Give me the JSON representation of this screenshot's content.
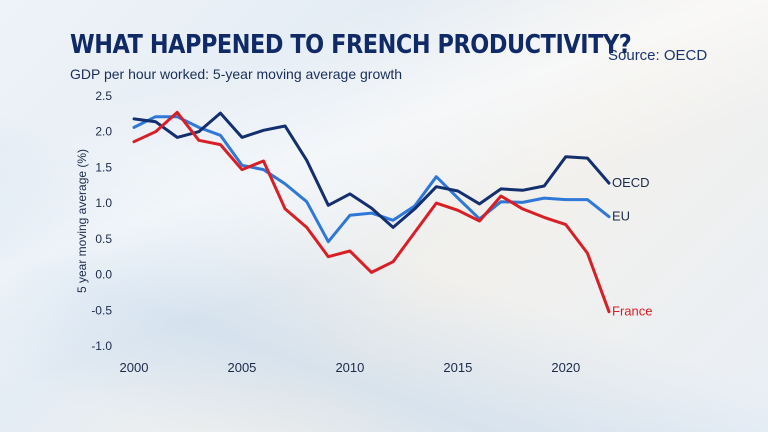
{
  "header": {
    "title": "WHAT HAPPENED TO FRENCH PRODUCTIVITY?",
    "subtitle": "GDP per hour worked: 5-year moving average growth",
    "source": "Source: OECD"
  },
  "colors": {
    "oecd": "#132f6e",
    "eu": "#2f78d8",
    "france": "#d91f26",
    "axis_text": "#1c2a4a"
  },
  "chart_data": {
    "type": "line",
    "title": "WHAT HAPPENED TO FRENCH PRODUCTIVITY?",
    "subtitle": "GDP per hour worked: 5-year moving average growth",
    "xlabel": "",
    "ylabel": "5 year moving average (%)",
    "xlim": [
      2000,
      2022
    ],
    "ylim": [
      -1.0,
      2.5
    ],
    "x_ticks": [
      2000,
      2005,
      2010,
      2015,
      2020
    ],
    "x_tick_labels": [
      "2000",
      "2005",
      "2010",
      "2015",
      "2020"
    ],
    "y_ticks": [
      -1.0,
      -0.5,
      0.0,
      0.5,
      1.0,
      1.5,
      2.0,
      2.5
    ],
    "y_tick_labels": [
      "-1.0",
      "-0.5",
      "0.0",
      "0.5",
      "1.0",
      "1.5",
      "2.0",
      "2.5"
    ],
    "grid": false,
    "legend": "inline labels at line ends",
    "x": [
      2000,
      2001,
      2002,
      2003,
      2004,
      2005,
      2006,
      2007,
      2008,
      2009,
      2010,
      2011,
      2012,
      2013,
      2014,
      2015,
      2016,
      2017,
      2018,
      2019,
      2020,
      2021,
      2022
    ],
    "series": [
      {
        "name": "OECD",
        "color": "#132f6e",
        "values": [
          2.18,
          2.14,
          1.92,
          2.0,
          2.26,
          1.92,
          2.02,
          2.08,
          1.6,
          0.97,
          1.13,
          0.93,
          0.66,
          0.92,
          1.23,
          1.17,
          0.99,
          1.2,
          1.18,
          1.24,
          1.65,
          1.63,
          1.28
        ]
      },
      {
        "name": "EU",
        "color": "#2f78d8",
        "values": [
          2.06,
          2.21,
          2.21,
          2.06,
          1.95,
          1.53,
          1.47,
          1.27,
          1.02,
          0.46,
          0.83,
          0.86,
          0.76,
          0.96,
          1.37,
          1.07,
          0.78,
          1.02,
          1.01,
          1.07,
          1.05,
          1.05,
          0.81
        ]
      },
      {
        "name": "France",
        "color": "#d91f26",
        "values": [
          1.86,
          2.0,
          2.27,
          1.88,
          1.82,
          1.47,
          1.59,
          0.92,
          0.66,
          0.25,
          0.33,
          0.03,
          0.18,
          0.59,
          1.0,
          0.9,
          0.75,
          1.1,
          0.92,
          0.8,
          0.7,
          0.3,
          -0.52
        ]
      }
    ]
  }
}
